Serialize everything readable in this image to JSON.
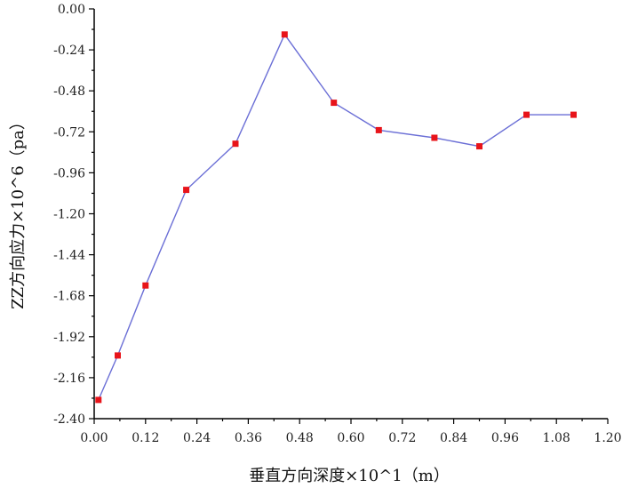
{
  "chart_data": {
    "type": "line",
    "xlabel": "垂直方向深度×10^1（m）",
    "ylabel": "ZZ方向应力×10^6（pa）",
    "xlim": [
      0.0,
      1.2
    ],
    "ylim": [
      -2.4,
      0.0
    ],
    "x_ticks": [
      "0.00",
      "0.12",
      "0.24",
      "0.36",
      "0.48",
      "0.60",
      "0.72",
      "0.84",
      "0.96",
      "1.08",
      "1.20"
    ],
    "y_ticks": [
      "0.00",
      "-0.24",
      "-0.48",
      "-0.72",
      "-0.96",
      "-1.20",
      "-1.44",
      "-1.68",
      "-1.92",
      "-2.16",
      "-2.40"
    ],
    "grid": false,
    "series": [
      {
        "x": [
          0.01,
          0.055,
          0.12,
          0.215,
          0.33,
          0.445,
          0.56,
          0.665,
          0.795,
          0.9,
          1.01,
          1.12
        ],
        "values": [
          -2.29,
          -2.03,
          -1.62,
          -1.06,
          -0.79,
          -0.15,
          -0.55,
          -0.71,
          -0.755,
          -0.805,
          -0.62,
          -0.62
        ],
        "line_color": "#6b6fd6",
        "marker_color": "#e8141a"
      }
    ]
  }
}
